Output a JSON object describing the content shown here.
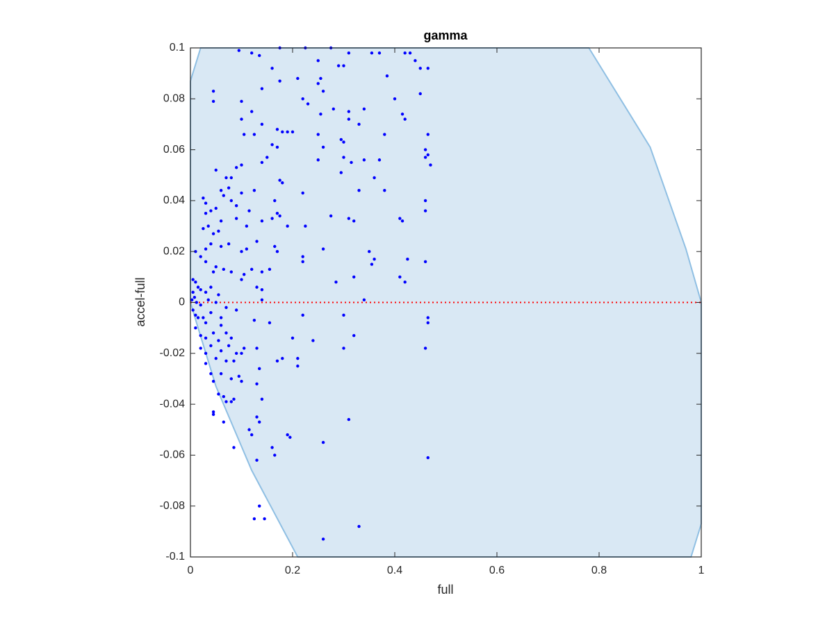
{
  "chart_data": {
    "type": "scatter",
    "title": "gamma",
    "x_label": "full",
    "y_label": "accel-full",
    "xlim": [
      0,
      1
    ],
    "ylim": [
      -0.1,
      0.1
    ],
    "xticks": [
      0,
      0.2,
      0.4,
      0.6,
      0.8,
      1
    ],
    "yticks": [
      -0.1,
      -0.08,
      -0.06,
      -0.04,
      -0.02,
      0,
      0.02,
      0.04,
      0.06,
      0.08,
      0.1
    ],
    "region": {
      "color": "#d9e8f4",
      "edge_color": "#8fbfe3",
      "x": [
        0,
        0.02,
        0.78,
        0.9,
        0.97,
        1,
        1,
        0.98,
        0.21,
        0.12,
        0.05,
        0.015,
        0
      ],
      "y": [
        0.087,
        0.1,
        0.1,
        0.061,
        0.021,
        0,
        -0.087,
        -0.1,
        -0.1,
        -0.066,
        -0.033,
        -0.01,
        0
      ]
    },
    "reference_line": {
      "y": 0,
      "color": "#ff0000"
    },
    "series": [
      {
        "color": "#0000ff",
        "x": [
          0.095,
          0.12,
          0.135,
          0.175,
          0.225,
          0.275,
          0.31,
          0.355,
          0.37,
          0.42,
          0.43,
          0.44,
          0.45,
          0.465,
          0.385,
          0.25,
          0.29,
          0.3,
          0.16,
          0.21,
          0.175,
          0.255,
          0.25,
          0.26,
          0.045,
          0.14,
          0.45,
          0.045,
          0.1,
          0.22,
          0.23,
          0.4,
          0.28,
          0.31,
          0.34,
          0.12,
          0.255,
          0.31,
          0.33,
          0.415,
          0.42,
          0.1,
          0.14,
          0.17,
          0.18,
          0.19,
          0.2,
          0.25,
          0.38,
          0.465,
          0.105,
          0.125,
          0.295,
          0.3,
          0.16,
          0.17,
          0.26,
          0.46,
          0.465,
          0.46,
          0.3,
          0.315,
          0.34,
          0.37,
          0.25,
          0.14,
          0.15,
          0.47,
          0.1,
          0.09,
          0.05,
          0.06,
          0.07,
          0.08,
          0.075,
          0.065,
          0.125,
          0.1,
          0.08,
          0.09,
          0.175,
          0.18,
          0.36,
          0.295,
          0.33,
          0.38,
          0.025,
          0.03,
          0.03,
          0.04,
          0.05,
          0.165,
          0.22,
          0.17,
          0.115,
          0.06,
          0.09,
          0.11,
          0.14,
          0.16,
          0.175,
          0.19,
          0.225,
          0.275,
          0.31,
          0.32,
          0.41,
          0.415,
          0.46,
          0.46,
          0.025,
          0.035,
          0.045,
          0.055,
          0.04,
          0.06,
          0.03,
          0.075,
          0.13,
          0.165,
          0.17,
          0.11,
          0.1,
          0.26,
          0.22,
          0.22,
          0.35,
          0.355,
          0.36,
          0.425,
          0.46,
          0.02,
          0.01,
          0.03,
          0.05,
          0.065,
          0.045,
          0.08,
          0.12,
          0.14,
          0.155,
          0.105,
          0.285,
          0.32,
          0.41,
          0.42,
          0.005,
          0.01,
          0.015,
          0.02,
          0.03,
          0.04,
          0.055,
          0.1,
          0.13,
          0.14,
          0.005,
          0.008,
          0.003,
          0.012,
          0.02,
          0.035,
          0.05,
          0.14,
          0.34,
          0.07,
          0.09,
          0.005,
          0.01,
          0.015,
          0.025,
          0.03,
          0.04,
          0.06,
          0.06,
          0.125,
          0.155,
          0.22,
          0.3,
          0.465,
          0.465,
          0.01,
          0.02,
          0.03,
          0.045,
          0.055,
          0.07,
          0.08,
          0.32,
          0.24,
          0.2,
          0.02,
          0.03,
          0.04,
          0.06,
          0.075,
          0.09,
          0.105,
          0.3,
          0.46,
          0.13,
          0.03,
          0.05,
          0.07,
          0.085,
          0.1,
          0.135,
          0.17,
          0.18,
          0.21,
          0.21,
          0.04,
          0.06,
          0.08,
          0.095,
          0.1,
          0.045,
          0.13,
          0.055,
          0.065,
          0.07,
          0.08,
          0.085,
          0.14,
          0.045,
          0.045,
          0.13,
          0.135,
          0.065,
          0.31,
          0.115,
          0.12,
          0.19,
          0.195,
          0.085,
          0.16,
          0.165,
          0.26,
          0.13,
          0.465,
          0.135,
          0.125,
          0.145,
          0.33,
          0.26
        ],
        "y": [
          0.099,
          0.098,
          0.097,
          0.1,
          0.1,
          0.1,
          0.098,
          0.098,
          0.098,
          0.098,
          0.098,
          0.095,
          0.092,
          0.092,
          0.089,
          0.095,
          0.093,
          0.093,
          0.092,
          0.088,
          0.087,
          0.088,
          0.086,
          0.083,
          0.083,
          0.084,
          0.082,
          0.079,
          0.079,
          0.08,
          0.078,
          0.08,
          0.076,
          0.075,
          0.076,
          0.075,
          0.074,
          0.072,
          0.07,
          0.074,
          0.072,
          0.072,
          0.07,
          0.068,
          0.067,
          0.067,
          0.067,
          0.066,
          0.066,
          0.066,
          0.066,
          0.066,
          0.064,
          0.063,
          0.062,
          0.061,
          0.061,
          0.06,
          0.058,
          0.057,
          0.057,
          0.055,
          0.056,
          0.056,
          0.056,
          0.055,
          0.057,
          0.054,
          0.054,
          0.053,
          0.052,
          0.044,
          0.049,
          0.049,
          0.045,
          0.042,
          0.044,
          0.043,
          0.04,
          0.038,
          0.048,
          0.047,
          0.049,
          0.051,
          0.044,
          0.044,
          0.041,
          0.039,
          0.035,
          0.036,
          0.037,
          0.04,
          0.043,
          0.035,
          0.036,
          0.032,
          0.033,
          0.03,
          0.032,
          0.033,
          0.034,
          0.03,
          0.03,
          0.034,
          0.033,
          0.032,
          0.033,
          0.032,
          0.04,
          0.036,
          0.029,
          0.03,
          0.027,
          0.028,
          0.023,
          0.022,
          0.021,
          0.023,
          0.024,
          0.022,
          0.02,
          0.021,
          0.02,
          0.021,
          0.018,
          0.016,
          0.02,
          0.015,
          0.017,
          0.017,
          0.016,
          0.018,
          0.02,
          0.016,
          0.014,
          0.013,
          0.012,
          0.012,
          0.013,
          0.012,
          0.013,
          0.011,
          0.008,
          0.01,
          0.01,
          0.008,
          0.009,
          0.008,
          0.006,
          0.005,
          0.004,
          0.006,
          0.003,
          0.009,
          0.006,
          0.005,
          0.004,
          0.002,
          0.001,
          0,
          -0.001,
          0.001,
          0,
          0.001,
          0.001,
          -0.002,
          -0.003,
          -0.003,
          -0.005,
          -0.006,
          -0.006,
          -0.008,
          -0.004,
          -0.006,
          -0.009,
          -0.007,
          -0.008,
          -0.005,
          -0.005,
          -0.006,
          -0.008,
          -0.01,
          -0.013,
          -0.014,
          -0.012,
          -0.015,
          -0.012,
          -0.014,
          -0.013,
          -0.015,
          -0.014,
          -0.018,
          -0.02,
          -0.017,
          -0.019,
          -0.017,
          -0.02,
          -0.018,
          -0.018,
          -0.018,
          -0.018,
          -0.024,
          -0.022,
          -0.023,
          -0.023,
          -0.02,
          -0.026,
          -0.023,
          -0.022,
          -0.022,
          -0.025,
          -0.028,
          -0.028,
          -0.03,
          -0.029,
          -0.031,
          -0.031,
          -0.032,
          -0.036,
          -0.037,
          -0.039,
          -0.039,
          -0.038,
          -0.038,
          -0.043,
          -0.044,
          -0.045,
          -0.047,
          -0.047,
          -0.046,
          -0.05,
          -0.052,
          -0.052,
          -0.053,
          -0.057,
          -0.057,
          -0.06,
          -0.055,
          -0.062,
          -0.061,
          -0.08,
          -0.085,
          -0.085,
          -0.088,
          -0.093
        ]
      }
    ]
  }
}
